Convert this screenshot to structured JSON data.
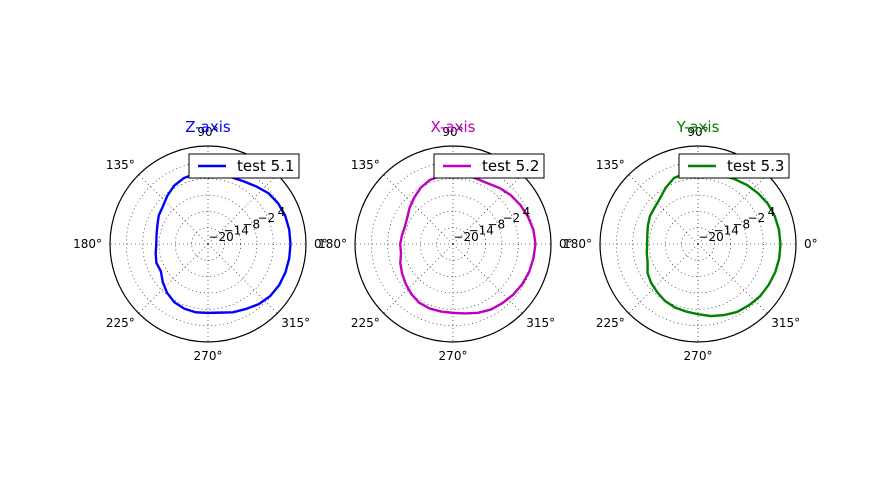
{
  "chart_data": [
    {
      "type": "polar-line",
      "title": "Z-axis",
      "title_color": "#0000ff",
      "line_color": "#0000ff",
      "legend": {
        "label": "test 5.1",
        "placement": "upper-right"
      },
      "angle_ticks_deg": [
        0,
        45,
        90,
        135,
        180,
        225,
        270,
        315
      ],
      "angle_tick_labels": [
        "0°",
        "",
        "90°",
        "135°",
        "180°",
        "225°",
        "270°",
        "315°"
      ],
      "radial_ticks": [
        -20,
        -14,
        -8,
        -2,
        4
      ],
      "radial_tick_labels": [
        "−20",
        "−14",
        "−8",
        "−2",
        "4"
      ],
      "r_range": [
        -26,
        10
      ],
      "grid": true,
      "theta_deg": [
        0,
        10,
        20,
        30,
        40,
        50,
        60,
        70,
        80,
        90,
        100,
        110,
        120,
        130,
        140,
        150,
        160,
        170,
        180,
        190,
        200,
        210,
        220,
        230,
        240,
        250,
        260,
        270,
        280,
        290,
        300,
        310,
        320,
        330,
        340,
        350,
        360
      ],
      "r": [
        4.3,
        4.3,
        4.2,
        3.8,
        3.0,
        1.6,
        0.5,
        0.0,
        0.0,
        0.2,
        0.2,
        -0.2,
        -1.2,
        -2.8,
        -4.4,
        -5.1,
        -6.2,
        -6.8,
        -7.0,
        -6.5,
        -5.8,
        -6.0,
        -4.3,
        -2.6,
        -1.3,
        -0.7,
        -0.5,
        -0.7,
        -0.4,
        0.7,
        1.6,
        2.9,
        3.8,
        4.2,
        4.3,
        4.3,
        4.3
      ]
    },
    {
      "type": "polar-line",
      "title": "X-axis",
      "title_color": "#bf00bf",
      "line_color": "#bf00bf",
      "legend": {
        "label": "test 5.2",
        "placement": "upper-right"
      },
      "angle_ticks_deg": [
        0,
        45,
        90,
        135,
        180,
        225,
        270,
        315
      ],
      "angle_tick_labels": [
        "0°",
        "",
        "90°",
        "135°",
        "180°",
        "225°",
        "270°",
        "315°"
      ],
      "radial_ticks": [
        -20,
        -14,
        -8,
        -2,
        4
      ],
      "radial_tick_labels": [
        "−20",
        "−14",
        "−8",
        "−2",
        "4"
      ],
      "r_range": [
        -26,
        10
      ],
      "grid": true,
      "theta_deg": [
        0,
        10,
        20,
        30,
        40,
        50,
        60,
        70,
        80,
        90,
        100,
        110,
        120,
        130,
        140,
        150,
        160,
        170,
        180,
        190,
        200,
        210,
        220,
        230,
        240,
        250,
        260,
        270,
        280,
        290,
        300,
        310,
        320,
        330,
        340,
        350,
        360
      ],
      "r": [
        4.3,
        4.0,
        3.3,
        2.6,
        1.8,
        0.8,
        -0.3,
        -0.5,
        -0.2,
        -0.4,
        -0.6,
        -1.0,
        -2.2,
        -3.8,
        -5.2,
        -6.6,
        -7.2,
        -7.0,
        -6.6,
        -6.6,
        -5.4,
        -4.4,
        -3.3,
        -2.1,
        -1.1,
        -0.8,
        -0.8,
        -0.7,
        -0.1,
        0.9,
        1.8,
        2.3,
        2.9,
        3.4,
        3.8,
        4.0,
        4.3
      ]
    },
    {
      "type": "polar-line",
      "title": "Y-axis",
      "title_color": "#008000",
      "line_color": "#008000",
      "legend": {
        "label": "test 5.3",
        "placement": "upper-right"
      },
      "angle_ticks_deg": [
        0,
        45,
        90,
        135,
        180,
        225,
        270,
        315
      ],
      "angle_tick_labels": [
        "0°",
        "",
        "90°",
        "135°",
        "180°",
        "225°",
        "270°",
        "315°"
      ],
      "radial_ticks": [
        -20,
        -14,
        -8,
        -2,
        4
      ],
      "radial_tick_labels": [
        "−20",
        "−14",
        "−8",
        "−2",
        "4"
      ],
      "r_range": [
        -26,
        10
      ],
      "grid": true,
      "theta_deg": [
        0,
        10,
        20,
        30,
        40,
        50,
        60,
        70,
        80,
        90,
        100,
        110,
        120,
        130,
        140,
        150,
        160,
        170,
        180,
        190,
        200,
        210,
        220,
        230,
        240,
        250,
        260,
        270,
        280,
        290,
        300,
        310,
        320,
        330,
        340,
        350,
        360
      ],
      "r": [
        4.3,
        4.2,
        4.0,
        3.6,
        2.9,
        2.2,
        1.4,
        0.8,
        0.4,
        0.4,
        0.4,
        -0.2,
        -2.2,
        -4.2,
        -5.2,
        -5.6,
        -6.4,
        -7.1,
        -7.3,
        -6.9,
        -6.3,
        -4.6,
        -3.6,
        -2.8,
        -1.8,
        -1.2,
        -0.8,
        -0.2,
        0.9,
        1.8,
        2.8,
        3.3,
        3.8,
        4.0,
        4.2,
        4.3,
        4.3
      ]
    }
  ]
}
